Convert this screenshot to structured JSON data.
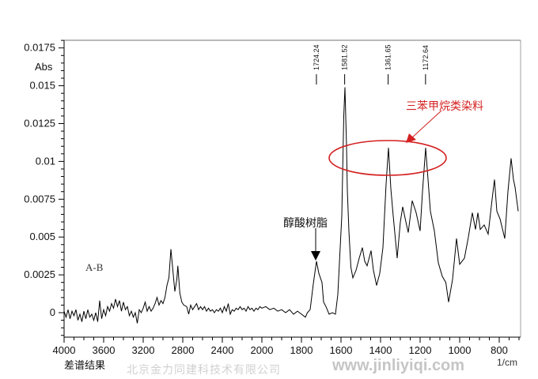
{
  "chart_data": {
    "type": "line",
    "title": "",
    "xlabel": "1/cm",
    "ylabel": "Abs",
    "caption": "差谱结果",
    "series_label": "A-B",
    "xlim": [
      4000,
      700
    ],
    "x_axis_reversed": true,
    "x_scale_note": "expanded below 2000",
    "ylim": [
      -0.0016,
      0.018
    ],
    "grid": false,
    "x_ticks": [
      4000,
      3600,
      3200,
      2800,
      2400,
      2000,
      1800,
      1600,
      1400,
      1200,
      1000,
      800
    ],
    "y_ticks": [
      "0",
      "0.0025",
      "0.005",
      "0.0075",
      "0.01",
      "0.0125",
      "0.015",
      "0.0175"
    ],
    "y_tick_values": [
      0,
      0.0025,
      0.005,
      0.0075,
      0.01,
      0.0125,
      0.015,
      0.0175
    ],
    "line_color": "#000000",
    "points": [
      [
        4000,
        0.0001
      ],
      [
        3980,
        -0.0003
      ],
      [
        3960,
        0.0002
      ],
      [
        3940,
        -0.0004
      ],
      [
        3920,
        0.0001
      ],
      [
        3900,
        -0.0002
      ],
      [
        3880,
        0.0002
      ],
      [
        3860,
        -0.0005
      ],
      [
        3840,
        -0.0001
      ],
      [
        3820,
        -0.0006
      ],
      [
        3800,
        0.0001
      ],
      [
        3780,
        -0.0004
      ],
      [
        3760,
        0.0002
      ],
      [
        3740,
        -0.0003
      ],
      [
        3720,
        -0.0001
      ],
      [
        3700,
        -0.0005
      ],
      [
        3680,
        0.0
      ],
      [
        3660,
        -0.0006
      ],
      [
        3640,
        0.0008
      ],
      [
        3620,
        -0.0004
      ],
      [
        3600,
        0.0002
      ],
      [
        3580,
        -0.0002
      ],
      [
        3560,
        0.0004
      ],
      [
        3540,
        0.0001
      ],
      [
        3520,
        0.0006
      ],
      [
        3500,
        0.0003
      ],
      [
        3480,
        0.0009
      ],
      [
        3460,
        0.0004
      ],
      [
        3440,
        0.0008
      ],
      [
        3420,
        0.0001
      ],
      [
        3400,
        0.0007
      ],
      [
        3380,
        0.0002
      ],
      [
        3360,
        0.0004
      ],
      [
        3340,
        -0.0002
      ],
      [
        3320,
        0.0001
      ],
      [
        3300,
        -0.0003
      ],
      [
        3280,
        0.0
      ],
      [
        3260,
        -0.0007
      ],
      [
        3240,
        0.0002
      ],
      [
        3220,
        0.0
      ],
      [
        3200,
        0.0003
      ],
      [
        3180,
        0.0007
      ],
      [
        3160,
        0.0001
      ],
      [
        3140,
        0.0004
      ],
      [
        3120,
        0.0001
      ],
      [
        3100,
        0.0003
      ],
      [
        3080,
        0.0006
      ],
      [
        3060,
        0.001
      ],
      [
        3040,
        0.0005
      ],
      [
        3020,
        0.0008
      ],
      [
        3000,
        0.0006
      ],
      [
        2980,
        0.001
      ],
      [
        2960,
        0.0018
      ],
      [
        2940,
        0.0023
      ],
      [
        2920,
        0.0042
      ],
      [
        2900,
        0.0028
      ],
      [
        2880,
        0.0014
      ],
      [
        2860,
        0.0022
      ],
      [
        2850,
        0.0031
      ],
      [
        2830,
        0.0013
      ],
      [
        2810,
        0.0007
      ],
      [
        2790,
        0.0005
      ],
      [
        2760,
        0.0004
      ],
      [
        2740,
        -0.0001
      ],
      [
        2720,
        0.0005
      ],
      [
        2700,
        0.0002
      ],
      [
        2680,
        0.0004
      ],
      [
        2660,
        0.0006
      ],
      [
        2640,
        0.0002
      ],
      [
        2620,
        0.0004
      ],
      [
        2600,
        0.0002
      ],
      [
        2580,
        0.0004
      ],
      [
        2560,
        0.0001
      ],
      [
        2540,
        0.0003
      ],
      [
        2520,
        0.0001
      ],
      [
        2500,
        0.0002
      ],
      [
        2480,
        0.0
      ],
      [
        2460,
        0.0002
      ],
      [
        2440,
        0.0001
      ],
      [
        2420,
        0.0003
      ],
      [
        2400,
        0.0
      ],
      [
        2380,
        0.0004
      ],
      [
        2360,
        0.0001
      ],
      [
        2340,
        0.0006
      ],
      [
        2320,
        -0.0001
      ],
      [
        2300,
        0.0002
      ],
      [
        2280,
        0.0001
      ],
      [
        2260,
        0.0003
      ],
      [
        2240,
        0.0002
      ],
      [
        2220,
        0.0004
      ],
      [
        2200,
        0.0002
      ],
      [
        2180,
        0.0003
      ],
      [
        2160,
        0.0001
      ],
      [
        2140,
        0.0004
      ],
      [
        2120,
        0.0002
      ],
      [
        2100,
        0.0003
      ],
      [
        2080,
        0.0001
      ],
      [
        2060,
        0.0003
      ],
      [
        2040,
        0.0002
      ],
      [
        2020,
        0.0004
      ],
      [
        2000,
        0.0003
      ],
      [
        1980,
        0.0004
      ],
      [
        1960,
        0.0002
      ],
      [
        1940,
        0.0003
      ],
      [
        1920,
        0.0001
      ],
      [
        1900,
        0.0002
      ],
      [
        1880,
        0.0
      ],
      [
        1860,
        0.0002
      ],
      [
        1840,
        -0.0001
      ],
      [
        1820,
        0.0001
      ],
      [
        1800,
        -0.0001
      ],
      [
        1780,
        -0.0003
      ],
      [
        1770,
        0.0
      ],
      [
        1756,
        0.0002
      ],
      [
        1740,
        0.0019
      ],
      [
        1724,
        0.0034
      ],
      [
        1712,
        0.0026
      ],
      [
        1696,
        0.002
      ],
      [
        1688,
        0.0007
      ],
      [
        1676,
        0.0004
      ],
      [
        1660,
        -0.0001
      ],
      [
        1644,
        0.0
      ],
      [
        1628,
        -0.0001
      ],
      [
        1616,
        0.0012
      ],
      [
        1596,
        0.0064
      ],
      [
        1586,
        0.013
      ],
      [
        1580,
        0.0149
      ],
      [
        1572,
        0.011
      ],
      [
        1568,
        0.0081
      ],
      [
        1560,
        0.0054
      ],
      [
        1550,
        0.003
      ],
      [
        1540,
        0.0023
      ],
      [
        1524,
        0.0028
      ],
      [
        1508,
        0.0036
      ],
      [
        1492,
        0.0043
      ],
      [
        1480,
        0.0034
      ],
      [
        1468,
        0.0031
      ],
      [
        1448,
        0.0041
      ],
      [
        1436,
        0.0028
      ],
      [
        1420,
        0.0018
      ],
      [
        1404,
        0.0026
      ],
      [
        1388,
        0.0043
      ],
      [
        1372,
        0.0085
      ],
      [
        1360,
        0.0109
      ],
      [
        1348,
        0.0082
      ],
      [
        1336,
        0.0064
      ],
      [
        1316,
        0.0036
      ],
      [
        1300,
        0.006
      ],
      [
        1288,
        0.007
      ],
      [
        1272,
        0.006
      ],
      [
        1260,
        0.0053
      ],
      [
        1240,
        0.0074
      ],
      [
        1220,
        0.0066
      ],
      [
        1200,
        0.0054
      ],
      [
        1188,
        0.008
      ],
      [
        1172,
        0.0109
      ],
      [
        1160,
        0.0088
      ],
      [
        1148,
        0.0067
      ],
      [
        1128,
        0.0054
      ],
      [
        1108,
        0.0033
      ],
      [
        1088,
        0.0024
      ],
      [
        1070,
        0.002
      ],
      [
        1056,
        0.0007
      ],
      [
        1036,
        0.0022
      ],
      [
        1016,
        0.0049
      ],
      [
        1000,
        0.0032
      ],
      [
        976,
        0.0036
      ],
      [
        956,
        0.005
      ],
      [
        936,
        0.0066
      ],
      [
        920,
        0.0055
      ],
      [
        908,
        0.0066
      ],
      [
        896,
        0.0055
      ],
      [
        876,
        0.0058
      ],
      [
        856,
        0.0052
      ],
      [
        836,
        0.0075
      ],
      [
        824,
        0.0088
      ],
      [
        812,
        0.0067
      ],
      [
        796,
        0.0062
      ],
      [
        772,
        0.0049
      ],
      [
        756,
        0.008
      ],
      [
        740,
        0.0102
      ],
      [
        728,
        0.0088
      ],
      [
        720,
        0.0083
      ],
      [
        704,
        0.0067
      ]
    ],
    "peak_labels": [
      {
        "x": 1724.24,
        "label": "1724.24"
      },
      {
        "x": 1581.52,
        "label": "1581.52"
      },
      {
        "x": 1361.65,
        "label": "1361.65"
      },
      {
        "x": 1172.64,
        "label": "1172.64"
      }
    ],
    "annotations": {
      "dye_label": "三苯甲烷类染料",
      "dye_color": "#d42020",
      "alkyd_label": "醇酸树脂"
    }
  },
  "watermark": {
    "company": "北京金力同建科技术有限公司",
    "url": "www.jinliyiqi.com"
  }
}
